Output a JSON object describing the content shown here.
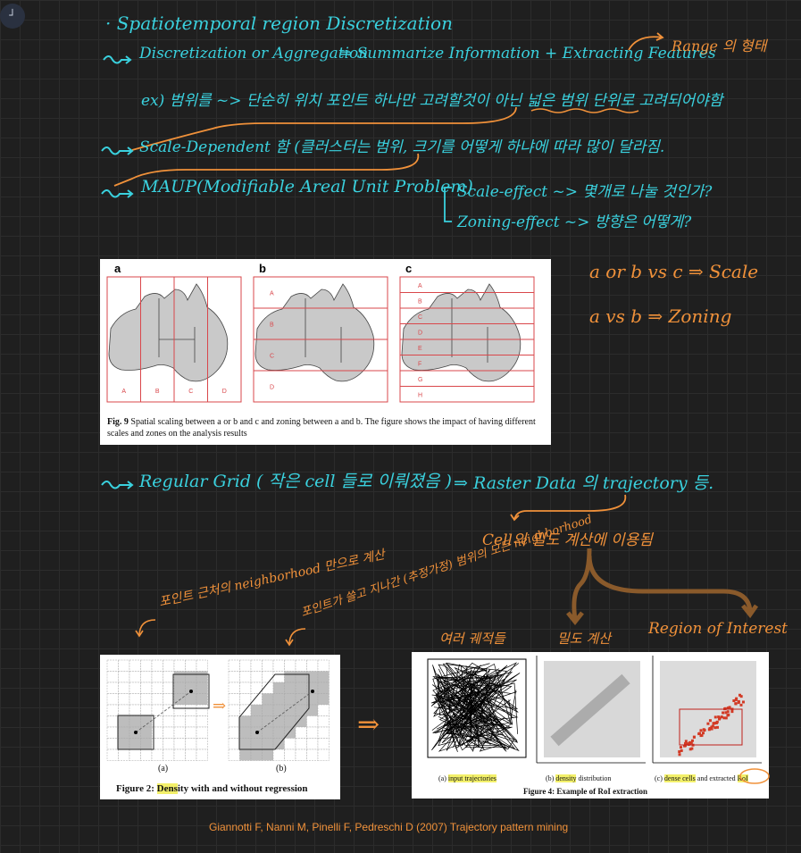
{
  "corner_button": {
    "icon": "corner-bracket-icon",
    "glyph": "┘"
  },
  "notes": {
    "line1": "· Spatiotemporal region Discretization",
    "line2a": "Discretization or Aggregation",
    "line2b": "⇒ Summarize Information + Extracting Features",
    "range_note": "Range 의 형태",
    "line3": "ex) 범위를 ~> 단순히 위치 포인트 하나만 고려할것이 아닌 넓은 범위 단위로 고려되어야함",
    "line4": "Scale-Dependent 함 (클러스터는 범위, 크기를 어떻게 하냐에 따라 많이 달라짐.",
    "line5": "MAUP(Modifiable Areal Unit Problem)",
    "scale_effect": "Scale-effect ~> 몇개로 나눌 것인가?",
    "zoning_effect": "Zoning-effect ~> 방향은 어떻게?",
    "avb": "a or b  vs  c  ⇒ Scale",
    "avb2": "a vs b  ⇒ Zoning",
    "grid_line": "Regular Grid ( 작은 cell 들로 이뤄졌음 )",
    "grid_line2": "⇒ Raster Data 의 trajectory 등.",
    "cell_density": "Cell의 밀도 계산에 이용됨",
    "point_near": "포인트 근처의 neighborhood 만으로 계산",
    "point_far": "포인트가 쓸고 지나간 (추정가정) 범위의 모든 neighborhood",
    "multi_traj": "여러 궤적들",
    "density_calc": "밀도 계산",
    "roi": "Region of Interest",
    "arrow_sym": "⇒"
  },
  "figure9": {
    "panel_labels": [
      "a",
      "b",
      "c"
    ],
    "a_zones": [
      "A",
      "B",
      "C",
      "D"
    ],
    "b_zones": [
      "A",
      "B",
      "C",
      "D"
    ],
    "c_zones": [
      "A",
      "B",
      "C",
      "D",
      "E",
      "F",
      "G",
      "H"
    ],
    "caption_label": "Fig. 9",
    "caption_text": "Spatial scaling between a or b and c and zoning between a and b. The figure shows the impact of having different scales and zones on the analysis results"
  },
  "figure2": {
    "sub_a": "(a)",
    "sub_b": "(b)",
    "caption_pre": "Figure 2: ",
    "caption_hl": "Dens",
    "caption_post": "ity with and without regression"
  },
  "figure4": {
    "sub_a_pre": "(a) ",
    "sub_a_hl": "input trajectories",
    "sub_b_pre": "(b) ",
    "sub_b_hl": "density",
    "sub_b_post": " distribution",
    "sub_c_pre": "(c) ",
    "sub_c_hl": "dense cells",
    "sub_c_mid": " and extracted ",
    "sub_c_hl2": "RoI",
    "caption": "Figure 4: Example of RoI extraction"
  },
  "citation": "Giannotti F, Nanni M, Pinelli F, Pedreschi D (2007) Trajectory pattern mining",
  "colors": {
    "cyan": "#3ad1de",
    "orange": "#f0913a",
    "highlight": "#f3f06a",
    "grid_red": "#d9474b"
  }
}
